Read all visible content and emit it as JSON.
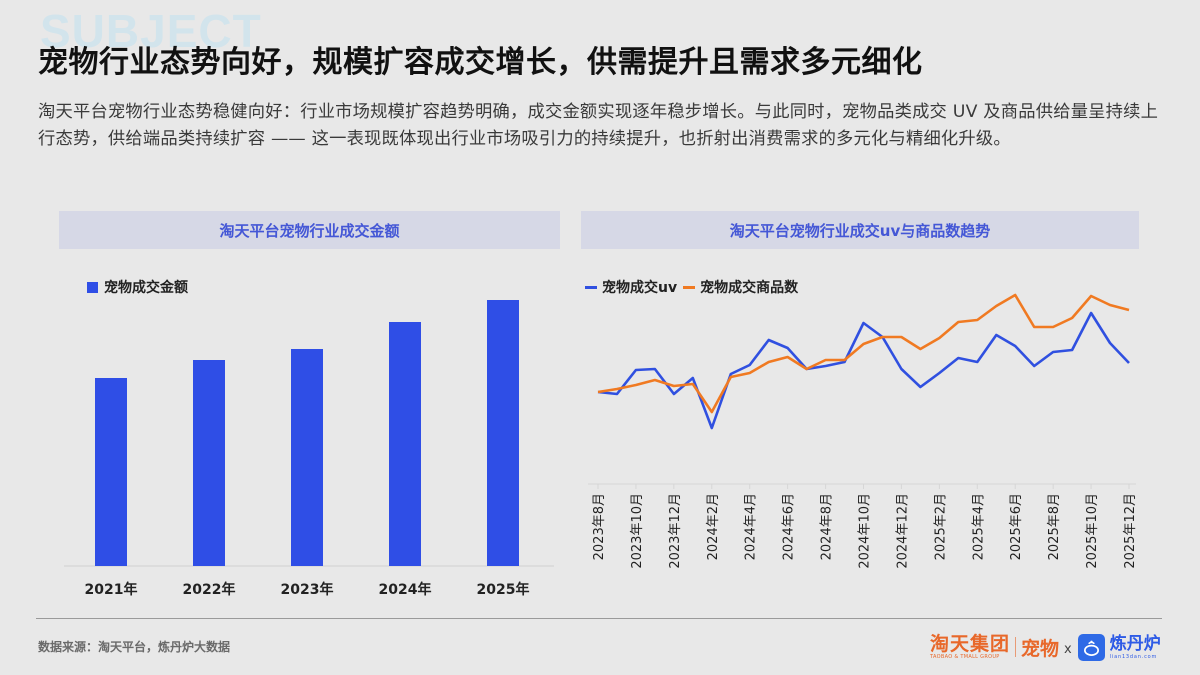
{
  "watermark": "SUBJECT",
  "title": "宠物行业态势向好，规模扩容成交增长，供需提升且需求多元细化",
  "description": "淘天平台宠物行业态势稳健向好：行业市场规模扩容趋势明确，成交金额实现逐年稳步增长。与此同时，宠物品类成交 UV 及商品供给量呈持续上行态势，供给端品类持续扩容 —— 这一表现既体现出行业市场吸引力的持续提升，也折射出消费需求的多元化与精细化升级。",
  "left_panel": {
    "header": "淘天平台宠物行业成交金额",
    "legend": "宠物成交金额"
  },
  "right_panel": {
    "header": "淘天平台宠物行业成交uv与商品数趋势",
    "legend_uv": "宠物成交uv",
    "legend_goods": "宠物成交商品数"
  },
  "colors": {
    "bar": "#2f4ee6",
    "uv_line": "#3050e0",
    "goods_line": "#f07a22",
    "header_bg": "#d6d8e6",
    "header_text": "#4457d6"
  },
  "chart_data": [
    {
      "type": "bar",
      "title": "淘天平台宠物行业成交金额",
      "categories": [
        "2021年",
        "2022年",
        "2023年",
        "2024年",
        "2025年"
      ],
      "series": [
        {
          "name": "宠物成交金额",
          "values": [
            188,
            206,
            217,
            244,
            266
          ]
        }
      ],
      "xlabel": "",
      "ylabel": "",
      "ylim": [
        0,
        280
      ],
      "grid": false,
      "legend_position": "top-left",
      "note": "No y-axis shown; values are relative bar heights"
    },
    {
      "type": "line",
      "title": "淘天平台宠物行业成交uv与商品数趋势",
      "x": [
        "2023年8月",
        "2023年9月",
        "2023年10月",
        "2023年11月",
        "2023年12月",
        "2024年1月",
        "2024年2月",
        "2024年3月",
        "2024年4月",
        "2024年5月",
        "2024年6月",
        "2024年7月",
        "2024年8月",
        "2024年9月",
        "2024年10月",
        "2024年11月",
        "2024年12月",
        "2025年1月",
        "2025年2月",
        "2025年3月",
        "2025年4月",
        "2025年5月",
        "2025年6月",
        "2025年7月",
        "2025年8月",
        "2025年9月",
        "2025年10月",
        "2025年11月",
        "2025年12月"
      ],
      "tick_labels": [
        "2023年8月",
        "2023年10月",
        "2023年12月",
        "2024年2月",
        "2024年4月",
        "2024年6月",
        "2024年8月",
        "2024年10月",
        "2024年12月",
        "2025年2月",
        "2025年4月",
        "2025年6月",
        "2025年8月",
        "2025年10月",
        "2025年12月"
      ],
      "series": [
        {
          "name": "宠物成交uv",
          "values": [
            58,
            56,
            80,
            81,
            56,
            72,
            22,
            76,
            85,
            110,
            102,
            81,
            84,
            88,
            127,
            113,
            81,
            63,
            77,
            92,
            88,
            115,
            104,
            84,
            98,
            100,
            137,
            107,
            87
          ]
        },
        {
          "name": "宠物成交商品数",
          "values": [
            58,
            61,
            65,
            70,
            64,
            66,
            38,
            73,
            77,
            88,
            93,
            81,
            90,
            90,
            106,
            113,
            113,
            101,
            112,
            128,
            130,
            144,
            155,
            123,
            123,
            132,
            154,
            145,
            140
          ]
        }
      ],
      "xlabel": "",
      "ylabel": "",
      "ylim": [
        0,
        170
      ],
      "grid": false,
      "legend_position": "top-left",
      "note": "No y-axis shown; values are relative indices read from line positions"
    }
  ],
  "footer": {
    "source": "数据来源：淘天平台，炼丹炉大数据",
    "logo_taotian_cn": "淘天集团",
    "logo_taotian_en": "TAOBAO & TMALL GROUP",
    "logo_pet": "宠物",
    "logo_x": "x",
    "logo_ldl_cn": "炼丹炉",
    "logo_ldl_en": "lian13dan.com"
  }
}
